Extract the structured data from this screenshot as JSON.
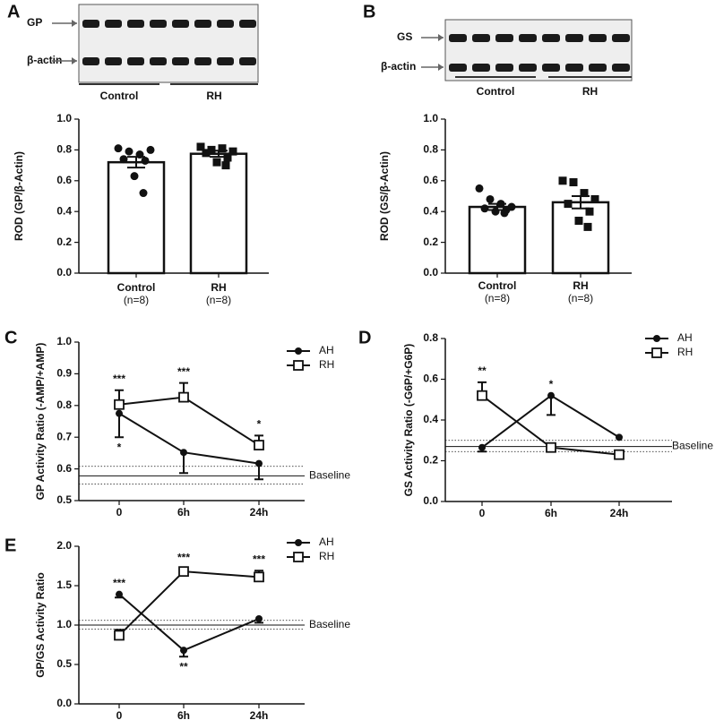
{
  "chart_data": [
    {
      "type": "bar",
      "panel_label": "A",
      "blot": {
        "bands": [
          "GP",
          "β-actin"
        ],
        "groups": [
          "Control",
          "RH"
        ]
      },
      "ylabel": "ROD (GP/β-Actin)",
      "categories": [
        "Control",
        "RH"
      ],
      "category_notes": [
        "(n=8)",
        "(n=8)"
      ],
      "values": [
        0.72,
        0.775
      ],
      "errors": [
        0.035,
        0.02
      ],
      "point_markers": [
        "circle",
        "square"
      ],
      "points": [
        [
          0.81,
          0.79,
          0.77,
          0.8,
          0.74,
          0.73,
          0.63,
          0.52
        ],
        [
          0.82,
          0.8,
          0.81,
          0.79,
          0.78,
          0.75,
          0.72,
          0.7
        ]
      ],
      "ylim": [
        0,
        1
      ],
      "yticks": [
        {
          "value": 0,
          "label": "0.0"
        },
        0.2,
        0.4,
        0.6,
        0.8,
        {
          "value": 1,
          "label": "1.0"
        }
      ]
    },
    {
      "type": "bar",
      "panel_label": "B",
      "blot": {
        "bands": [
          "GS",
          "β-actin"
        ],
        "groups": [
          "Control",
          "RH"
        ]
      },
      "ylabel": "ROD (GS/β-Actin)",
      "categories": [
        "Control",
        "RH"
      ],
      "category_notes": [
        "(n=8)",
        "(n=8)"
      ],
      "values": [
        0.43,
        0.46
      ],
      "errors": [
        0.02,
        0.04
      ],
      "point_markers": [
        "circle",
        "square"
      ],
      "points": [
        [
          0.55,
          0.48,
          0.45,
          0.43,
          0.42,
          0.41,
          0.4,
          0.39
        ],
        [
          0.6,
          0.59,
          0.52,
          0.48,
          0.45,
          0.4,
          0.34,
          0.3
        ]
      ],
      "ylim": [
        0,
        1
      ],
      "yticks": [
        {
          "value": 0,
          "label": "0.0"
        },
        0.2,
        0.4,
        0.6,
        0.8,
        {
          "value": 1,
          "label": "1.0"
        }
      ]
    },
    {
      "type": "line",
      "panel_label": "C",
      "ylabel": "GP Activity Ratio (-AMP/+AMP)",
      "categories": [
        "0",
        "6h",
        "24h"
      ],
      "series": [
        {
          "name": "AH",
          "marker": "circle",
          "error_direction": "down",
          "values": [
            0.775,
            0.652,
            0.617
          ],
          "errors": [
            0.075,
            0.065,
            0.05
          ],
          "significance": [
            "*",
            null,
            null
          ]
        },
        {
          "name": "RH",
          "marker": "square",
          "error_direction": "up",
          "values": [
            0.803,
            0.826,
            0.675
          ],
          "errors": [
            0.045,
            0.045,
            0.03
          ],
          "significance": [
            "***",
            "***",
            "*"
          ]
        }
      ],
      "baseline": {
        "label": "Baseline",
        "value": 0.578,
        "range": [
          0.552,
          0.608
        ]
      },
      "ylim": [
        0.5,
        1
      ],
      "yticks": [
        0.5,
        0.6,
        0.7,
        0.8,
        0.9,
        {
          "value": 1,
          "label": "1.0"
        }
      ]
    },
    {
      "type": "line",
      "panel_label": "D",
      "ylabel": "GS Activity Ratio (-G6P/+G6P)",
      "categories": [
        "0",
        "6h",
        "24h"
      ],
      "series": [
        {
          "name": "AH",
          "marker": "circle",
          "error_direction": "down",
          "values": [
            0.265,
            0.52,
            0.315
          ],
          "errors": [
            0.02,
            0.095,
            0
          ],
          "significance": [
            null,
            "*",
            null
          ]
        },
        {
          "name": "RH",
          "marker": "square",
          "error_direction": "up",
          "values": [
            0.52,
            0.265,
            0.23
          ],
          "errors": [
            0.065,
            0,
            0.02
          ],
          "significance": [
            "**",
            null,
            null
          ]
        }
      ],
      "baseline": {
        "label": "Baseline",
        "value": 0.27,
        "range": [
          0.245,
          0.3
        ]
      },
      "ylim": [
        0,
        0.8
      ],
      "yticks": [
        {
          "value": 0,
          "label": "0.0"
        },
        0.2,
        0.4,
        0.6,
        0.8
      ]
    },
    {
      "type": "line",
      "panel_label": "E",
      "ylabel": "GP/GS  Activity Ratio",
      "categories": [
        "0",
        "6h",
        "24h"
      ],
      "series": [
        {
          "name": "AH",
          "marker": "circle",
          "error_direction": "down",
          "values": [
            1.39,
            0.68,
            1.08
          ],
          "errors": [
            0.04,
            0.08,
            0.05
          ],
          "significance": [
            "***",
            "**",
            null
          ]
        },
        {
          "name": "RH",
          "marker": "square",
          "error_direction": "up",
          "values": [
            0.87,
            1.68,
            1.61
          ],
          "errors": [
            0.07,
            0.03,
            0.08
          ],
          "significance": [
            null,
            "***",
            "***"
          ]
        }
      ],
      "baseline": {
        "label": "Baseline",
        "value": 1,
        "range": [
          0.95,
          1.06
        ]
      },
      "ylim": [
        0,
        2
      ],
      "yticks": [
        {
          "value": 0,
          "label": "0.0"
        },
        0.5,
        {
          "value": 1,
          "label": "1.0"
        },
        1.5,
        {
          "value": 2,
          "label": "2.0"
        }
      ]
    }
  ]
}
